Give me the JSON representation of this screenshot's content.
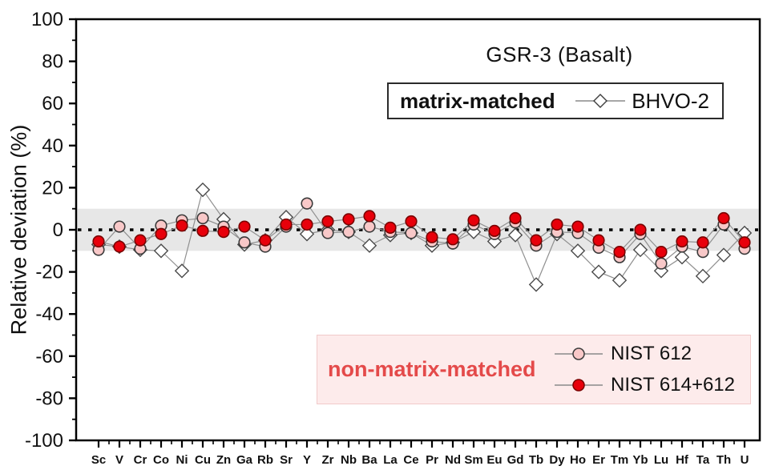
{
  "chart_data": {
    "type": "scatter",
    "title": "GSR-3 (Basalt)",
    "ylabel": "Relative deviation (%)",
    "ylim": [
      -100,
      100
    ],
    "yticks": [
      100,
      80,
      60,
      40,
      20,
      0,
      -20,
      -40,
      -60,
      -80,
      -100
    ],
    "ytick_minor_step": 10,
    "grid": false,
    "zero_line": 0,
    "tolerance_band": [
      -10,
      10
    ],
    "categories": [
      "Sc",
      "V",
      "Cr",
      "Co",
      "Ni",
      "Cu",
      "Zn",
      "Ga",
      "Rb",
      "Sr",
      "Y",
      "Zr",
      "Nb",
      "Ba",
      "La",
      "Ce",
      "Pr",
      "Nd",
      "Sm",
      "Eu",
      "Gd",
      "Tb",
      "Dy",
      "Ho",
      "Er",
      "Tm",
      "Yb",
      "Lu",
      "Hf",
      "Ta",
      "Th",
      "U"
    ],
    "series": [
      {
        "name": "BHVO-2",
        "marker": "diamond",
        "values": [
          -7,
          -8,
          -9.5,
          -10,
          -19.5,
          19,
          5,
          -7,
          -5,
          6,
          -2,
          0,
          -1,
          -7.5,
          -2.5,
          -1.5,
          -7.5,
          -6,
          -1,
          -5.5,
          -2.5,
          -26,
          -2,
          -10,
          -20,
          -24,
          -9.5,
          -19.5,
          -13,
          -22,
          -12,
          -1.5
        ]
      },
      {
        "name": "NIST 612",
        "marker": "circle-pink",
        "values": [
          -9.5,
          1.5,
          -9,
          2,
          4.5,
          5.5,
          1.5,
          -6,
          -8,
          1.5,
          12.5,
          -1.5,
          -1,
          1.5,
          -1,
          -1.5,
          -5.5,
          -6.5,
          2.5,
          -2,
          3.5,
          -7.5,
          -1,
          -1.5,
          -8.5,
          -13,
          -2,
          -16,
          -8,
          -10.5,
          2.5,
          -9
        ]
      },
      {
        "name": "NIST 614+612",
        "marker": "circle-red",
        "values": [
          -5.5,
          -8,
          -5,
          -2,
          2,
          -0.5,
          -1,
          1.5,
          -5,
          2.5,
          2.5,
          4,
          5,
          6.5,
          1,
          4,
          -3.5,
          -4.5,
          4.5,
          -0.5,
          5.5,
          -5,
          2.5,
          1.5,
          -5,
          -10.5,
          0,
          -10.5,
          -5.5,
          -6,
          5.5,
          -6
        ]
      }
    ]
  },
  "legend_matrix": {
    "label": "matrix-matched",
    "series_label": "BHVO-2"
  },
  "legend_nonmatrix": {
    "label": "non-matrix-matched",
    "entries": [
      {
        "label": "NIST 612"
      },
      {
        "label": "NIST 614+612"
      }
    ]
  },
  "colors": {
    "band": "#e7e7e7",
    "axis": "#000000",
    "connector_line": "#909090",
    "diamond_fill": "#ffffff",
    "diamond_stroke": "#4a4a4a",
    "pink_fill": "#f8c8c8",
    "pink_stroke": "#3a3a3a",
    "red_fill": "#e8000b",
    "red_stroke": "#7a0000",
    "nonmatrix_text": "#e44a4a",
    "nonmatrix_bg": "#fdebeb"
  }
}
